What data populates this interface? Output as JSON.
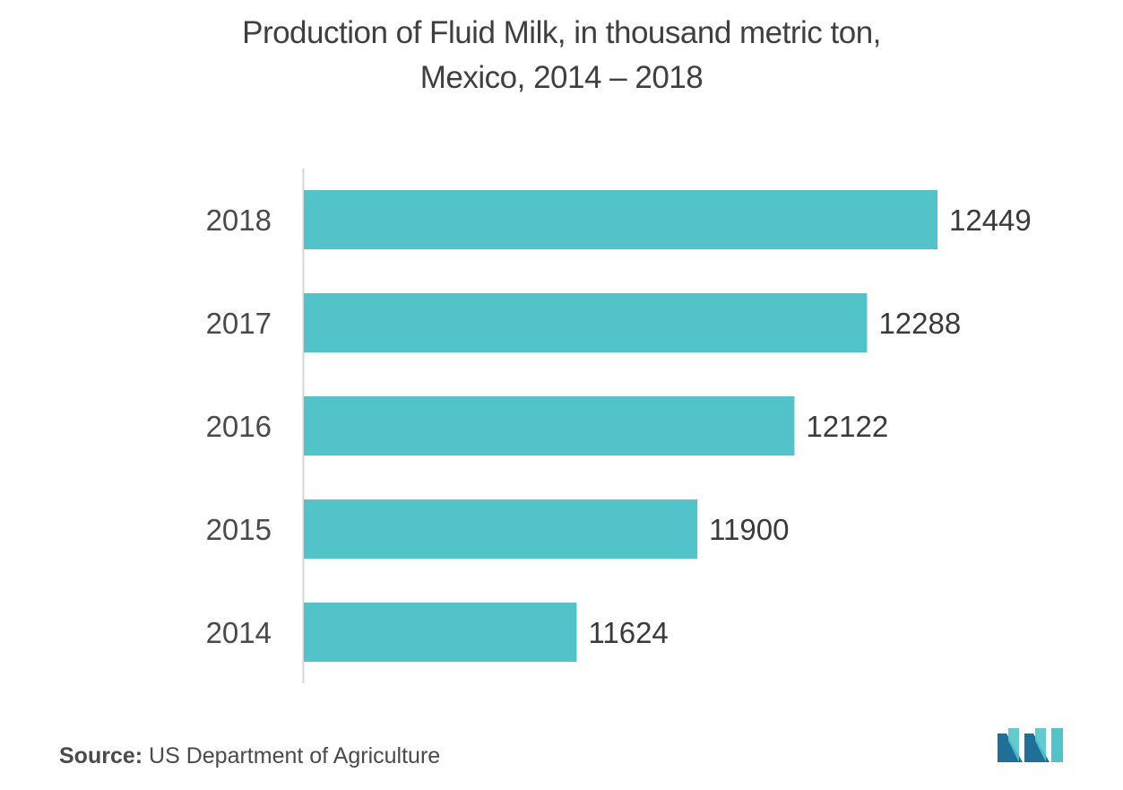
{
  "chart_data": {
    "type": "bar",
    "orientation": "horizontal",
    "title_lines": [
      "Production of Fluid Milk, in thousand metric ton,",
      "Mexico, 2014 – 2018"
    ],
    "categories": [
      "2018",
      "2017",
      "2016",
      "2015",
      "2014"
    ],
    "values": [
      12449,
      12288,
      12122,
      11900,
      11624
    ],
    "data_labels": [
      "12449",
      "12288",
      "12122",
      "11900",
      "11624"
    ],
    "xlim": [
      11000,
      12449
    ],
    "grid": false,
    "legend": "none",
    "bar_color": "#52c4c9"
  },
  "footer": {
    "source_label": "Source:",
    "source_text": " US Department of Agriculture"
  },
  "logo": {
    "icon": "mordor-intelligence-logo-icon",
    "colors": [
      "#1f6f99",
      "#52c4c9"
    ]
  }
}
